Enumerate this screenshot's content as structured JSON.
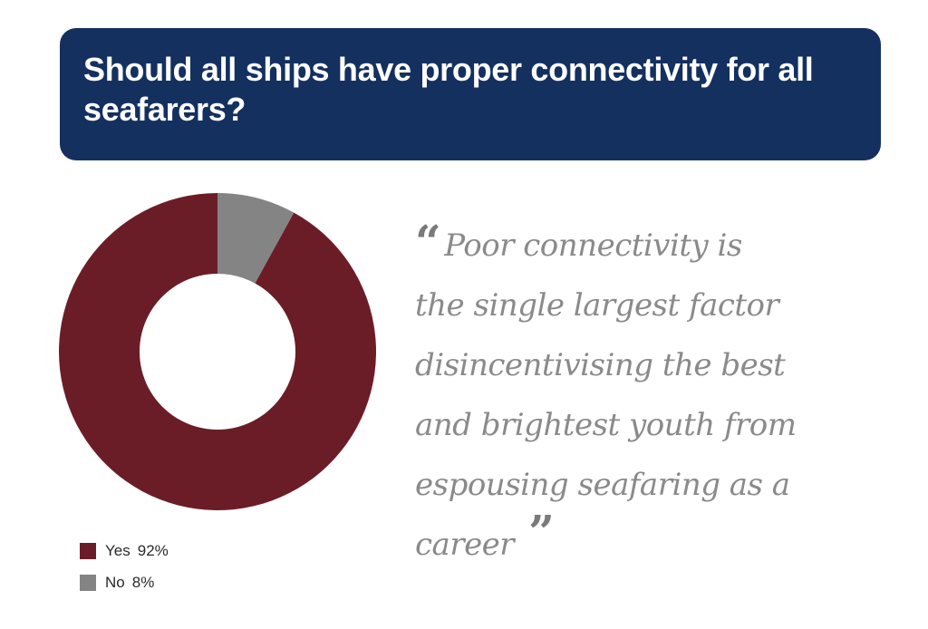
{
  "title": "Should all ships have proper connectivity for all seafarers?",
  "chart_data": {
    "type": "pie",
    "variant": "donut",
    "title": "Should all ships have proper connectivity for all seafarers?",
    "categories": [
      "Yes",
      "No"
    ],
    "values": [
      92,
      8
    ],
    "value_labels": [
      "92%",
      "8%"
    ],
    "colors": [
      "#6b1d27",
      "#848484"
    ],
    "legend_position": "bottom-left"
  },
  "quote": {
    "open_mark": "“",
    "close_mark": "”",
    "lines": [
      "Poor connectivity is",
      "the single largest factor",
      "disincentivising the best",
      "and brightest youth from",
      "espousing seafaring as a",
      "career"
    ]
  }
}
